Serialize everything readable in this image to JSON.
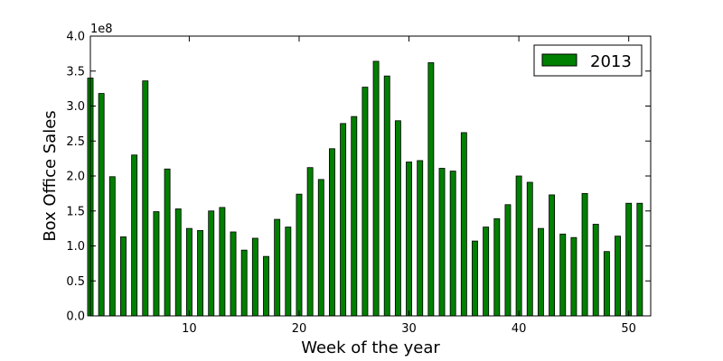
{
  "chart_data": {
    "type": "bar",
    "xlabel": "Week of the year",
    "ylabel": "Box Office Sales",
    "y_multiplier_label": "1e8",
    "xlim": [
      1,
      52
    ],
    "ylim": [
      0,
      4.0
    ],
    "y_unit_multiplier": 100000000,
    "x_ticks": [
      10,
      20,
      30,
      40,
      50
    ],
    "y_ticks": [
      "0.0",
      "0.5",
      "1.0",
      "1.5",
      "2.0",
      "2.5",
      "3.0",
      "3.5",
      "4.0"
    ],
    "legend_position": "top-right",
    "grid": false,
    "bar_color": "#008000",
    "series": [
      {
        "name": "2013",
        "x": [
          1,
          2,
          3,
          4,
          5,
          6,
          7,
          8,
          9,
          10,
          11,
          12,
          13,
          14,
          15,
          16,
          17,
          18,
          19,
          20,
          21,
          22,
          23,
          24,
          25,
          26,
          27,
          28,
          29,
          30,
          31,
          32,
          33,
          34,
          35,
          36,
          37,
          38,
          39,
          40,
          41,
          42,
          43,
          44,
          45,
          46,
          47,
          48,
          49,
          50,
          51,
          52
        ],
        "values": [
          3.4,
          3.18,
          1.99,
          1.13,
          2.3,
          3.36,
          1.49,
          2.1,
          1.53,
          1.25,
          1.22,
          1.5,
          1.55,
          1.2,
          0.94,
          1.11,
          0.85,
          1.38,
          1.27,
          1.74,
          2.12,
          1.95,
          2.39,
          2.75,
          2.85,
          3.27,
          3.64,
          3.43,
          2.79,
          2.2,
          2.22,
          3.62,
          2.11,
          2.07,
          2.62,
          1.07,
          1.27,
          1.39,
          1.59,
          2.0,
          1.91,
          1.25,
          1.73,
          1.17,
          1.12,
          1.75,
          1.31,
          0.92,
          1.14,
          1.61,
          1.61,
          0
        ]
      }
    ]
  }
}
